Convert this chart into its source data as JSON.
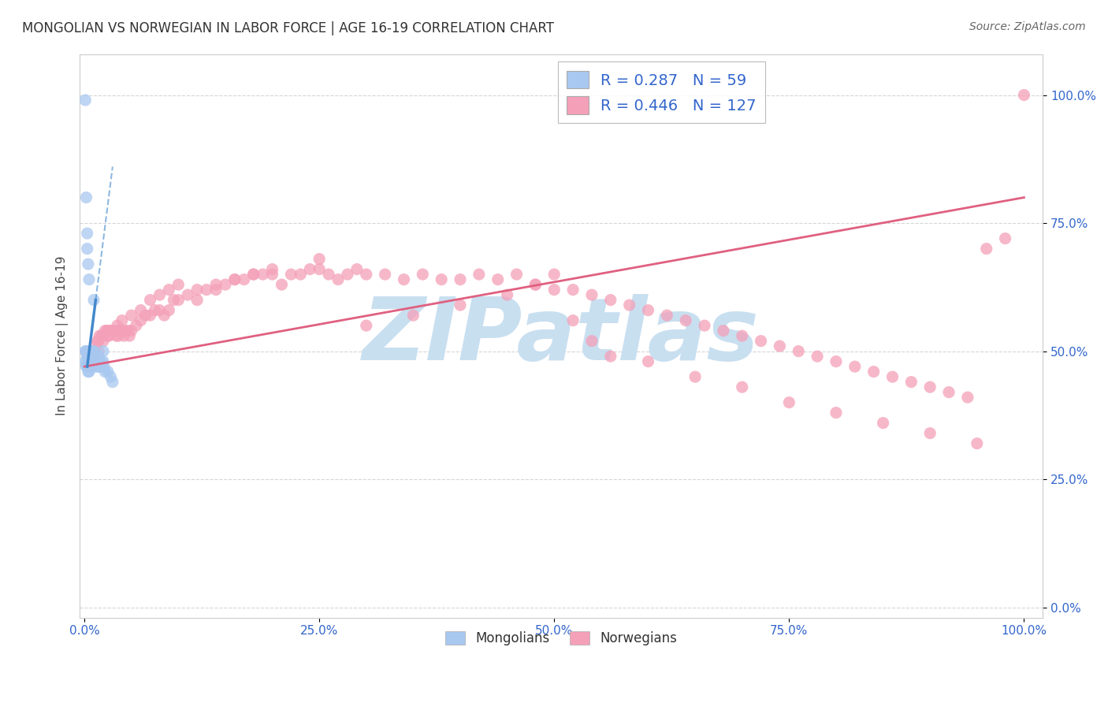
{
  "title": "MONGOLIAN VS NORWEGIAN IN LABOR FORCE | AGE 16-19 CORRELATION CHART",
  "source": "Source: ZipAtlas.com",
  "ylabel": "In Labor Force | Age 16-19",
  "legend_mongolian": "Mongolians",
  "legend_norwegian": "Norwegians",
  "mongolian_R": "0.287",
  "mongolian_N": "59",
  "norwegian_R": "0.446",
  "norwegian_N": "127",
  "mongolian_color": "#a8c8f0",
  "norwegian_color": "#f4a0b8",
  "mongolian_trendline_color": "#4488cc",
  "norwegian_trendline_color": "#e06080",
  "background_color": "#ffffff",
  "grid_color": "#cccccc",
  "title_color": "#333333",
  "tick_color": "#3366cc",
  "watermark_color": "#c8dff0",
  "watermark_text": "ZIPatlas",
  "x_ticks": [
    0.0,
    0.25,
    0.5,
    0.75,
    1.0
  ],
  "y_ticks": [
    0.0,
    0.25,
    0.5,
    0.75,
    1.0
  ],
  "norwegian_trend_start_y": 0.47,
  "norwegian_trend_end_y": 0.8,
  "mong_x": [
    0.001,
    0.001,
    0.002,
    0.002,
    0.003,
    0.003,
    0.003,
    0.003,
    0.004,
    0.004,
    0.004,
    0.004,
    0.004,
    0.005,
    0.005,
    0.005,
    0.005,
    0.005,
    0.006,
    0.006,
    0.006,
    0.006,
    0.007,
    0.007,
    0.007,
    0.008,
    0.008,
    0.008,
    0.009,
    0.009,
    0.01,
    0.01,
    0.01,
    0.011,
    0.011,
    0.012,
    0.012,
    0.013,
    0.014,
    0.015,
    0.015,
    0.016,
    0.017,
    0.018,
    0.019,
    0.02,
    0.021,
    0.022,
    0.025,
    0.028,
    0.03,
    0.001,
    0.002,
    0.003,
    0.003,
    0.004,
    0.005,
    0.01,
    0.02
  ],
  "mong_y": [
    0.5,
    0.48,
    0.5,
    0.47,
    0.5,
    0.49,
    0.48,
    0.47,
    0.5,
    0.49,
    0.48,
    0.47,
    0.46,
    0.5,
    0.49,
    0.48,
    0.47,
    0.46,
    0.5,
    0.49,
    0.48,
    0.47,
    0.5,
    0.49,
    0.48,
    0.5,
    0.49,
    0.48,
    0.5,
    0.49,
    0.5,
    0.49,
    0.48,
    0.48,
    0.47,
    0.49,
    0.48,
    0.48,
    0.47,
    0.49,
    0.47,
    0.48,
    0.47,
    0.48,
    0.47,
    0.48,
    0.47,
    0.46,
    0.46,
    0.45,
    0.44,
    0.99,
    0.8,
    0.73,
    0.7,
    0.67,
    0.64,
    0.6,
    0.5
  ],
  "norw_x": [
    0.005,
    0.008,
    0.01,
    0.012,
    0.014,
    0.015,
    0.016,
    0.018,
    0.02,
    0.022,
    0.024,
    0.025,
    0.026,
    0.028,
    0.03,
    0.032,
    0.034,
    0.035,
    0.036,
    0.038,
    0.04,
    0.042,
    0.044,
    0.046,
    0.048,
    0.05,
    0.055,
    0.06,
    0.065,
    0.07,
    0.075,
    0.08,
    0.085,
    0.09,
    0.095,
    0.1,
    0.11,
    0.12,
    0.13,
    0.14,
    0.15,
    0.16,
    0.17,
    0.18,
    0.19,
    0.2,
    0.21,
    0.22,
    0.23,
    0.24,
    0.25,
    0.26,
    0.27,
    0.28,
    0.29,
    0.3,
    0.32,
    0.34,
    0.36,
    0.38,
    0.4,
    0.42,
    0.44,
    0.46,
    0.48,
    0.5,
    0.52,
    0.54,
    0.56,
    0.58,
    0.6,
    0.62,
    0.64,
    0.66,
    0.68,
    0.7,
    0.72,
    0.74,
    0.76,
    0.78,
    0.8,
    0.82,
    0.84,
    0.86,
    0.88,
    0.9,
    0.92,
    0.94,
    0.96,
    0.98,
    1.0,
    0.01,
    0.015,
    0.02,
    0.025,
    0.03,
    0.035,
    0.04,
    0.05,
    0.06,
    0.07,
    0.08,
    0.09,
    0.1,
    0.12,
    0.14,
    0.16,
    0.18,
    0.2,
    0.25,
    0.3,
    0.35,
    0.4,
    0.45,
    0.48,
    0.5,
    0.52,
    0.54,
    0.56,
    0.6,
    0.65,
    0.7,
    0.75,
    0.8,
    0.85,
    0.9,
    0.95
  ],
  "norw_y": [
    0.47,
    0.49,
    0.5,
    0.51,
    0.52,
    0.52,
    0.53,
    0.53,
    0.53,
    0.54,
    0.54,
    0.54,
    0.53,
    0.54,
    0.54,
    0.54,
    0.53,
    0.54,
    0.53,
    0.54,
    0.54,
    0.53,
    0.54,
    0.54,
    0.53,
    0.54,
    0.55,
    0.56,
    0.57,
    0.57,
    0.58,
    0.58,
    0.57,
    0.58,
    0.6,
    0.6,
    0.61,
    0.62,
    0.62,
    0.63,
    0.63,
    0.64,
    0.64,
    0.65,
    0.65,
    0.65,
    0.63,
    0.65,
    0.65,
    0.66,
    0.66,
    0.65,
    0.64,
    0.65,
    0.66,
    0.65,
    0.65,
    0.64,
    0.65,
    0.64,
    0.64,
    0.65,
    0.64,
    0.65,
    0.63,
    0.62,
    0.62,
    0.61,
    0.6,
    0.59,
    0.58,
    0.57,
    0.56,
    0.55,
    0.54,
    0.53,
    0.52,
    0.51,
    0.5,
    0.49,
    0.48,
    0.47,
    0.46,
    0.45,
    0.44,
    0.43,
    0.42,
    0.41,
    0.7,
    0.72,
    1.0,
    0.49,
    0.5,
    0.52,
    0.53,
    0.54,
    0.55,
    0.56,
    0.57,
    0.58,
    0.6,
    0.61,
    0.62,
    0.63,
    0.6,
    0.62,
    0.64,
    0.65,
    0.66,
    0.68,
    0.55,
    0.57,
    0.59,
    0.61,
    0.63,
    0.65,
    0.56,
    0.52,
    0.49,
    0.48,
    0.45,
    0.43,
    0.4,
    0.38,
    0.36,
    0.34,
    0.32
  ]
}
